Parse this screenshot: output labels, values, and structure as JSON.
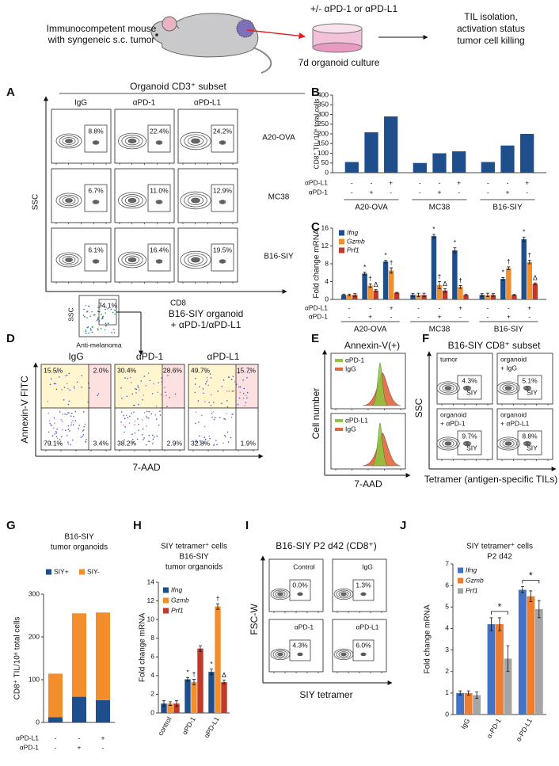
{
  "schematic": {
    "mouse_label": [
      "Immunocompetent mouse",
      "with syngeneic s.c. tumor"
    ],
    "treatment": "+/- αPD-1 or αPD-L1",
    "culture": "7d organoid culture",
    "readout": [
      "TIL isolation,",
      "activation status",
      "tumor cell killing"
    ]
  },
  "panel_labels": [
    "A",
    "B",
    "C",
    "D",
    "E",
    "F",
    "G",
    "H",
    "I",
    "J"
  ],
  "panel_A": {
    "title": "Organoid CD3⁺ subset",
    "columns": [
      "IgG",
      "αPD-1",
      "αPD-L1"
    ],
    "rows": [
      "A20-OVA",
      "MC38",
      "B16-SIY"
    ],
    "gates": [
      [
        "8.8%",
        "22.4%",
        "24.2%"
      ],
      [
        "6.7%",
        "11.0%",
        "12.9%"
      ],
      [
        "6.1%",
        "16.4%",
        "19.5%"
      ]
    ],
    "y_label": "SSC",
    "x_label": "CD8"
  },
  "panel_D": {
    "gate_percent": "74.1%",
    "gate_y_label": "SSC",
    "gate_x_label": "Anti-melanoma",
    "description": [
      "B16-SIY organoid",
      "+ αPD-1/αPD-L1"
    ],
    "columns": [
      "IgG",
      "αPD-1",
      "αPD-L1"
    ],
    "quadrants": [
      [
        "15.5%",
        "2.0%",
        "79.1%",
        "3.4%"
      ],
      [
        "30.4%",
        "28.6%",
        "38.2%",
        "2.9%"
      ],
      [
        "49.7%",
        "15.7%",
        "32.8%",
        "1.9%"
      ]
    ],
    "y_label": "Annexin-V FITC",
    "x_label": "7-AAD"
  },
  "panel_E": {
    "title": "Annexin-V(+)",
    "colors": [
      "#8dc63f",
      "#e2683c"
    ],
    "plots": [
      {
        "legend": [
          "αPD-1",
          "IgG"
        ]
      },
      {
        "legend": [
          "αPD-L1",
          "IgG"
        ]
      }
    ],
    "y_label": "Cell number",
    "x_label": "7-AAD"
  },
  "panel_F": {
    "title": "B16-SIY CD8⁺ subset",
    "plots": [
      {
        "label": [
          "tumor"
        ],
        "percent": "4.3%",
        "gate": "SIY"
      },
      {
        "label": [
          "organoid",
          "+ IgG"
        ],
        "percent": "5.1%",
        "gate": "SIY"
      },
      {
        "label": [
          "organoid",
          "+ αPD-1"
        ],
        "percent": "9.7%",
        "gate": "SIY"
      },
      {
        "label": [
          "organoid",
          "+ αPD-L1"
        ],
        "percent": "8.8%",
        "gate": "SIY"
      }
    ],
    "y_label": "SSC",
    "x_label": "Tetramer (antigen-specific TILs)"
  },
  "panel_I": {
    "title": "B16-SIY P2 d42 (CD8⁺)",
    "plots": [
      {
        "label": "Control",
        "percent": "0.0%"
      },
      {
        "label": "IgG",
        "percent": "1.3%"
      },
      {
        "label": "αPD-1",
        "percent": "4.3%"
      },
      {
        "label": "αPD-L1",
        "percent": "6.0%"
      }
    ],
    "y_label": "FSC-W",
    "x_label": "SIY tetramer"
  },
  "chart_data": [
    {
      "type": "bar",
      "values": [
        55,
        208,
        290,
        50,
        100,
        110,
        55,
        140,
        200
      ],
      "color": "#1f4e8c",
      "ylim": [
        0,
        400
      ],
      "yticks": [
        0,
        50,
        100,
        150,
        200,
        250,
        300,
        350,
        400
      ],
      "y_label": "CD8⁺ TIL/10⁶ total cells",
      "treatments": [
        {
          "name": "αPD-L1",
          "signs": [
            "-",
            "-",
            "+",
            "-",
            "-",
            "+",
            "-",
            "-",
            "+"
          ]
        },
        {
          "name": "αPD-1",
          "signs": [
            "-",
            "+",
            "-",
            "-",
            "+",
            "-",
            "-",
            "+",
            "-"
          ]
        }
      ],
      "groups": [
        "A20-OVA",
        "MC38",
        "B16-SIY"
      ]
    },
    {
      "type": "bar",
      "series": [
        {
          "name": "Ifng",
          "color": "#1f4e8c",
          "values": [
            1,
            5.8,
            8.5,
            1,
            14.2,
            11,
            1,
            4.6,
            13.5
          ],
          "errors": [
            0.2,
            0.3,
            0.3,
            0.3,
            0.4,
            0.6,
            0.3,
            0.3,
            0.5
          ],
          "annotations": [
            null,
            "*",
            "*",
            null,
            "*",
            "*",
            null,
            "*",
            "*"
          ]
        },
        {
          "name": "Gzmb",
          "color": "#f28e2b",
          "values": [
            1,
            3.1,
            6.5,
            1,
            3.2,
            2.8,
            1,
            7.0,
            8.4
          ],
          "errors": [
            0.2,
            0.4,
            0.6,
            0.4,
            0.8,
            0.3,
            0.4,
            0.3,
            0.4
          ],
          "annotations": [
            null,
            "†",
            "†",
            null,
            "†",
            "†",
            null,
            "†",
            "†"
          ]
        },
        {
          "name": "Prf1",
          "color": "#c0392b",
          "values": [
            1,
            2.0,
            1.5,
            1,
            2.0,
            1.0,
            1,
            1.0,
            3.5
          ],
          "errors": [
            0.3,
            0.2,
            0.1,
            0.4,
            0.4,
            0.2,
            0.3,
            0.1,
            0.2
          ],
          "annotations": [
            null,
            "Δ",
            null,
            null,
            "Δ",
            null,
            null,
            null,
            "Δ"
          ]
        }
      ],
      "ylim": [
        0,
        16
      ],
      "yticks": [
        0,
        4,
        8,
        12,
        16
      ],
      "y_label": "Fold change mRNA",
      "treatments": [
        {
          "name": "αPD-L1",
          "signs": [
            "-",
            "-",
            "+",
            "-",
            "-",
            "+",
            "-",
            "-",
            "+"
          ]
        },
        {
          "name": "αPD-1",
          "signs": [
            "-",
            "+",
            "-",
            "-",
            "+",
            "-",
            "-",
            "+",
            "-"
          ]
        }
      ],
      "groups": [
        "A20-OVA",
        "MC38",
        "B16-SIY"
      ]
    },
    {
      "type": "bar",
      "stacked": true,
      "title": [
        "B16-SIY",
        "tumor organoids"
      ],
      "series": [
        {
          "name": "SIY+",
          "color": "#1f4e8c",
          "values": [
            12,
            60,
            52
          ]
        },
        {
          "name": "SIY-",
          "color": "#f28e2b",
          "values": [
            102,
            195,
            205
          ]
        }
      ],
      "ylim": [
        0,
        300
      ],
      "yticks": [
        0,
        100,
        200,
        300
      ],
      "y_label": "CD8⁺ TIL/10⁶ total cells",
      "treatments": [
        {
          "name": "αPD-L1",
          "signs": [
            "-",
            "-",
            "+"
          ]
        },
        {
          "name": "αPD-1",
          "signs": [
            "-",
            "+",
            "-"
          ]
        }
      ]
    },
    {
      "type": "bar",
      "title": [
        "SIY tetramer⁺ cells",
        "B16-SIY",
        "tumor organoids"
      ],
      "categories": [
        "control",
        "αPD-1",
        "αPD-L1"
      ],
      "series": [
        {
          "name": "Ifng",
          "color": "#1f4e8c",
          "values": [
            1.0,
            3.6,
            4.4
          ],
          "errors": [
            0.3,
            0.2,
            0.3
          ],
          "annotations": [
            null,
            "*",
            "*"
          ]
        },
        {
          "name": "Gzmb",
          "color": "#f28e2b",
          "values": [
            1.0,
            3.3,
            11.4
          ],
          "errors": [
            0.2,
            0.3,
            0.3
          ],
          "annotations": [
            null,
            "†",
            "†"
          ]
        },
        {
          "name": "Prf1",
          "color": "#c0392b",
          "values": [
            1.0,
            6.9,
            3.3
          ],
          "errors": [
            0.3,
            0.3,
            0.2
          ],
          "annotations": [
            null,
            null,
            "Δ"
          ]
        }
      ],
      "ylim": [
        0,
        14
      ],
      "yticks": [
        0,
        2,
        4,
        6,
        8,
        10,
        12,
        14
      ],
      "y_label": "Fold change mRNA"
    },
    {
      "type": "bar",
      "title": [
        "SIY tetramer⁺ cells",
        "P2 d42"
      ],
      "categories": [
        "IgG",
        "α-PD-1",
        "α-PD-L1"
      ],
      "series": [
        {
          "name": "Ifng",
          "color": "#4472c4",
          "values": [
            1.0,
            4.2,
            5.8
          ],
          "errors": [
            0.1,
            0.3,
            0.15
          ]
        },
        {
          "name": "Gzmb",
          "color": "#ed7d31",
          "values": [
            1.0,
            4.2,
            5.5
          ],
          "errors": [
            0.1,
            0.3,
            0.25
          ]
        },
        {
          "name": "Prf1",
          "color": "#a5a5a5",
          "values": [
            0.9,
            2.6,
            4.9
          ],
          "errors": [
            0.15,
            0.6,
            0.4
          ]
        }
      ],
      "significance": [
        null,
        "*",
        "*"
      ],
      "ylim": [
        0,
        7
      ],
      "yticks": [
        0,
        1,
        2,
        3,
        4,
        5,
        6,
        7
      ],
      "y_label": "Fold change mRNA"
    }
  ]
}
